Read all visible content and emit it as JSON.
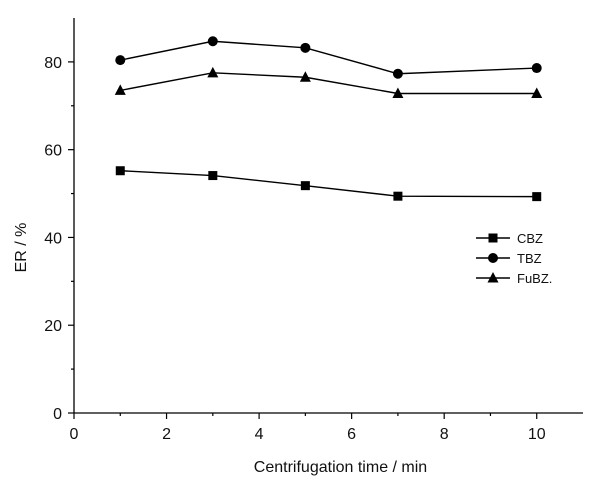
{
  "chart_data": {
    "type": "line",
    "xlabel": "Centrifugation time / min",
    "ylabel": "ER / %",
    "xlim": [
      0,
      11
    ],
    "ylim": [
      0,
      90
    ],
    "xticks": [
      0,
      2,
      4,
      6,
      8,
      10
    ],
    "yticks": [
      0,
      20,
      40,
      60,
      80
    ],
    "grid": false,
    "legend_position": "right-middle",
    "x": [
      1,
      3,
      5,
      7,
      10
    ],
    "series": [
      {
        "name": "CBZ",
        "marker": "square",
        "values": [
          55.2,
          54.1,
          51.8,
          49.4,
          49.3
        ]
      },
      {
        "name": "TBZ",
        "marker": "circle",
        "values": [
          80.4,
          84.7,
          83.2,
          77.3,
          78.6
        ]
      },
      {
        "name": "FuBZ.",
        "marker": "triangle",
        "values": [
          73.5,
          77.5,
          76.5,
          72.8,
          72.8
        ]
      }
    ],
    "colors": {
      "line": "#000000",
      "marker": "#000000"
    }
  }
}
